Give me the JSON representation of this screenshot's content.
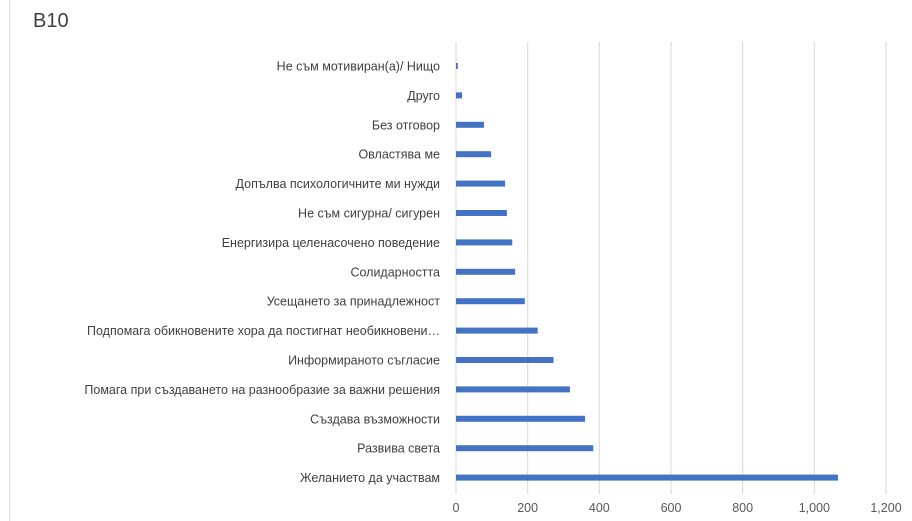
{
  "chart_data": {
    "type": "bar",
    "orientation": "horizontal",
    "title": "B10",
    "categories": [
      "Не съм мотивиран(а)/ Нищо",
      "Друго",
      "Без отговор",
      "Овластява ме",
      "Допълва психологичните ми нужди",
      "Не съм сигурна/ сигурен",
      "Енергизира целенасочено поведение",
      "Солидарността",
      "Усещането за принадлежност",
      "Подпомага обикновените хора да постигнат необикновени…",
      "Информираното съгласие",
      "Помага при създаването на разнообразие за важни решения",
      "Създава възможности",
      "Развива света",
      "Желанието да участвам"
    ],
    "values": [
      5,
      17,
      78,
      98,
      137,
      142,
      157,
      165,
      192,
      228,
      272,
      318,
      360,
      383,
      1066
    ],
    "xlim": [
      0,
      1200
    ],
    "xticks": [
      "0",
      "200",
      "400",
      "600",
      "800",
      "1,000",
      "1,200"
    ],
    "xtick_values": [
      0,
      200,
      400,
      600,
      800,
      1000,
      1200
    ],
    "grid": "vertical",
    "bar_color": "#4472c4"
  }
}
